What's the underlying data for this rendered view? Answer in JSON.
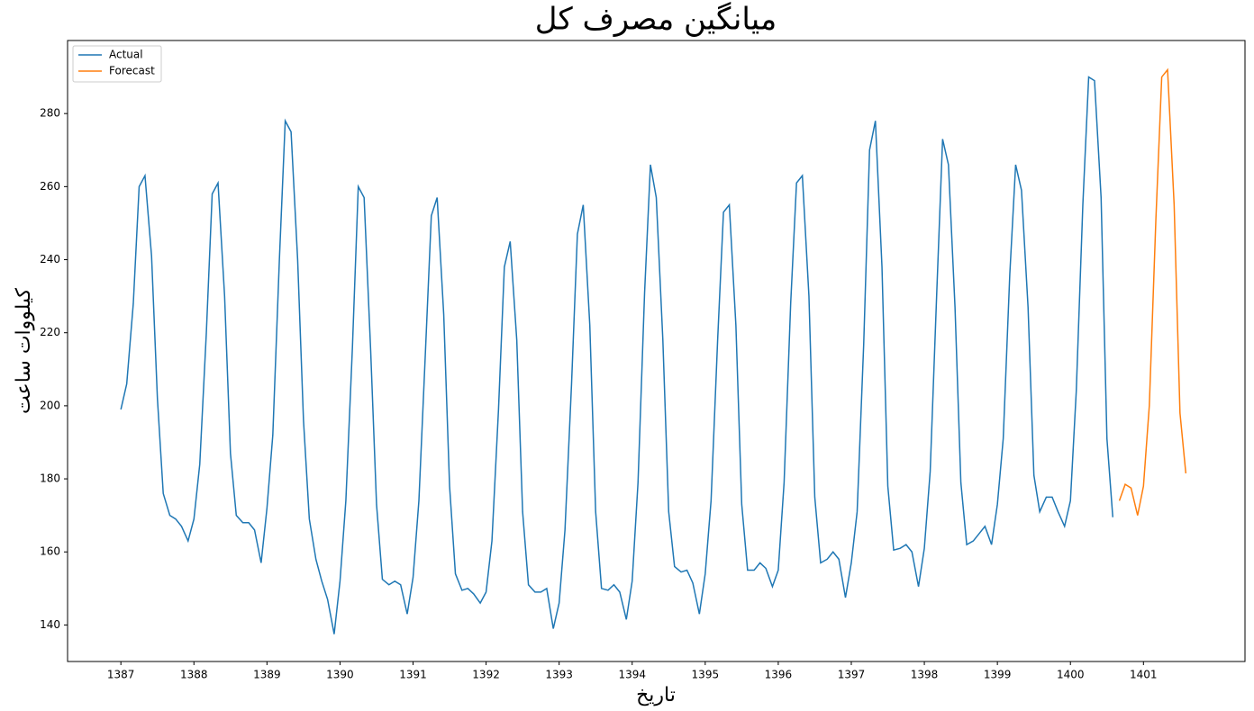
{
  "chart_data": {
    "type": "line",
    "title": "میانگین مصرف کل",
    "xlabel": "تاریخ",
    "ylabel": "کیلووات ساعت",
    "xlim": [
      1386.27,
      1402.39
    ],
    "ylim": [
      130,
      300
    ],
    "xticks": [
      1387,
      1388,
      1389,
      1390,
      1391,
      1392,
      1393,
      1394,
      1395,
      1396,
      1397,
      1398,
      1399,
      1400,
      1401
    ],
    "yticks": [
      140,
      160,
      180,
      200,
      220,
      240,
      260,
      280
    ],
    "grid": false,
    "legend": "upper left",
    "series": [
      {
        "name": "Actual",
        "color": "#1f77b4",
        "x": [
          1387,
          1387.08,
          1387.17,
          1387.25,
          1387.33,
          1387.42,
          1387.5,
          1387.58,
          1387.67,
          1387.75,
          1387.83,
          1387.92,
          1388,
          1388.08,
          1388.17,
          1388.25,
          1388.33,
          1388.42,
          1388.5,
          1388.58,
          1388.67,
          1388.75,
          1388.83,
          1388.92,
          1389,
          1389.08,
          1389.17,
          1389.25,
          1389.33,
          1389.42,
          1389.5,
          1389.58,
          1389.67,
          1389.75,
          1389.83,
          1389.92,
          1390,
          1390.08,
          1390.17,
          1390.25,
          1390.33,
          1390.42,
          1390.5,
          1390.58,
          1390.67,
          1390.75,
          1390.83,
          1390.92,
          1391,
          1391.08,
          1391.17,
          1391.25,
          1391.33,
          1391.42,
          1391.5,
          1391.58,
          1391.67,
          1391.75,
          1391.83,
          1391.92,
          1392,
          1392.08,
          1392.17,
          1392.25,
          1392.33,
          1392.42,
          1392.5,
          1392.58,
          1392.67,
          1392.75,
          1392.83,
          1392.92,
          1393,
          1393.08,
          1393.17,
          1393.25,
          1393.33,
          1393.42,
          1393.5,
          1393.58,
          1393.67,
          1393.75,
          1393.83,
          1393.92,
          1394,
          1394.08,
          1394.17,
          1394.25,
          1394.33,
          1394.42,
          1394.5,
          1394.58,
          1394.67,
          1394.75,
          1394.83,
          1394.92,
          1395,
          1395.08,
          1395.17,
          1395.25,
          1395.33,
          1395.42,
          1395.5,
          1395.58,
          1395.67,
          1395.75,
          1395.83,
          1395.92,
          1396,
          1396.08,
          1396.17,
          1396.25,
          1396.33,
          1396.42,
          1396.5,
          1396.58,
          1396.67,
          1396.75,
          1396.83,
          1396.92,
          1397,
          1397.08,
          1397.17,
          1397.25,
          1397.33,
          1397.42,
          1397.5,
          1397.58,
          1397.67,
          1397.75,
          1397.83,
          1397.92,
          1398,
          1398.08,
          1398.17,
          1398.25,
          1398.33,
          1398.42,
          1398.5,
          1398.58,
          1398.67,
          1398.75,
          1398.83,
          1398.92,
          1399,
          1399.08,
          1399.17,
          1399.25,
          1399.33,
          1399.42,
          1399.5,
          1399.58,
          1399.67,
          1399.75,
          1399.83,
          1399.92,
          1400,
          1400.08,
          1400.17,
          1400.25,
          1400.33,
          1400.42,
          1400.5,
          1400.58
        ],
        "values": [
          199,
          206,
          228,
          260,
          263,
          241,
          202,
          176,
          170,
          169,
          167,
          163,
          169,
          184,
          220,
          258,
          261,
          230,
          187,
          170,
          168,
          168,
          166,
          157,
          172,
          192,
          240,
          278,
          275,
          240,
          196,
          169,
          158,
          152,
          147,
          137.5,
          152,
          174,
          216,
          260,
          257,
          215,
          173,
          152.5,
          151,
          152,
          151,
          143,
          153,
          174,
          215,
          252,
          257,
          225,
          178,
          154,
          149.5,
          150,
          148.5,
          146,
          149,
          163,
          199,
          238,
          245,
          218,
          171,
          151,
          149,
          149,
          150,
          139,
          146,
          166,
          206,
          247,
          255,
          222,
          171,
          150,
          149.5,
          151,
          149,
          141.5,
          152,
          179,
          231,
          266,
          257,
          218,
          171,
          156,
          154.5,
          155,
          151.5,
          143,
          154,
          174,
          218,
          253,
          255,
          222,
          173,
          155,
          155,
          157,
          155.5,
          150.5,
          155,
          179,
          228,
          261,
          263,
          230,
          175,
          157,
          158,
          160,
          158,
          147.5,
          157,
          171,
          217,
          270,
          278,
          238,
          178,
          160.5,
          161,
          162,
          160,
          150.5,
          161,
          182,
          231,
          273,
          266,
          227,
          179,
          162,
          163,
          165,
          167,
          162,
          173,
          191,
          236,
          266,
          259,
          227,
          181,
          171,
          175,
          175,
          171,
          167,
          174,
          204,
          255,
          290,
          289,
          257,
          191,
          169.5
        ]
      },
      {
        "name": "Forecast",
        "color": "#ff7f0e",
        "x": [
          1400.67,
          1400.75,
          1400.83,
          1400.92,
          1401,
          1401.08,
          1401.17,
          1401.25,
          1401.33,
          1401.42,
          1401.5,
          1401.58
        ],
        "values": [
          174,
          178.5,
          177.5,
          170,
          178,
          200,
          251,
          290,
          292,
          255,
          198,
          181.5
        ]
      }
    ]
  }
}
